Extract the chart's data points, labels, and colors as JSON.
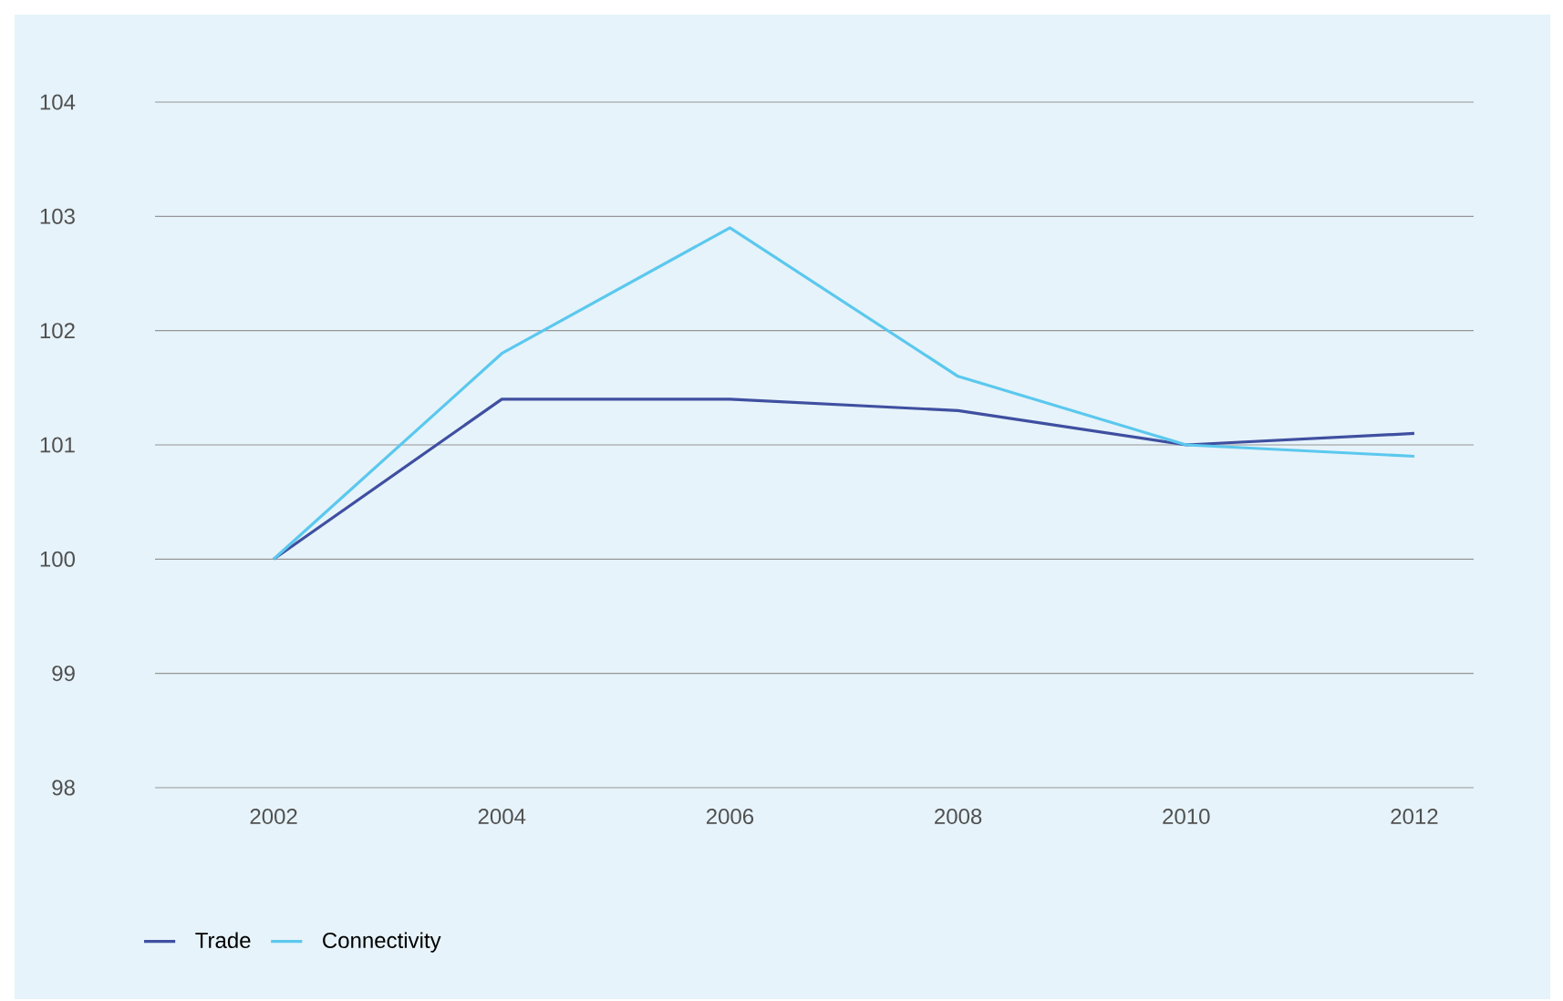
{
  "chart_data": {
    "type": "line",
    "categories": [
      "2002",
      "2004",
      "2006",
      "2008",
      "2010",
      "2012"
    ],
    "series": [
      {
        "name": "Trade",
        "color": "#3f4fa0",
        "values": [
          100,
          101.4,
          101.4,
          101.3,
          101.0,
          101.1
        ]
      },
      {
        "name": "Connectivity",
        "color": "#5bc8ee",
        "values": [
          100,
          101.8,
          102.9,
          101.6,
          101.0,
          100.9
        ]
      }
    ],
    "ylim": [
      98,
      104
    ],
    "yticks": [
      98,
      99,
      100,
      101,
      102,
      103,
      104
    ],
    "grid": "y",
    "legend": "bottom left",
    "marker": "none",
    "line_style": "solid"
  }
}
